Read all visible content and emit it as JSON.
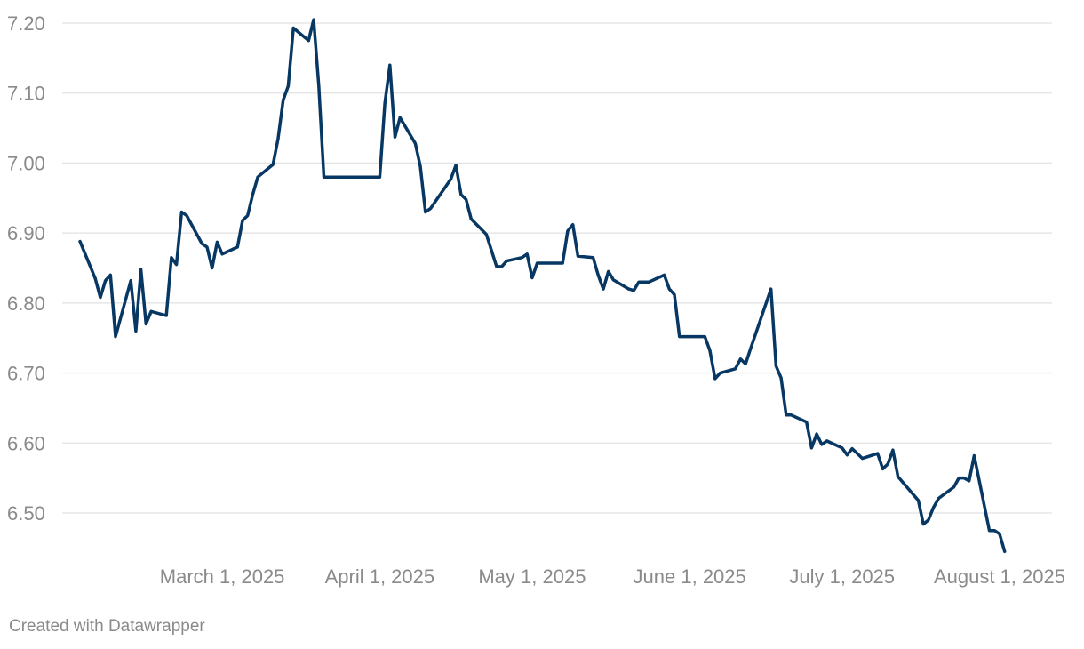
{
  "credit": "Created with Datawrapper",
  "colors": {
    "line": "#073763",
    "grid": "#e2e2e2",
    "tick": "#8a8a8a"
  },
  "chart_data": {
    "type": "line",
    "title": "",
    "xlabel": "",
    "ylabel": "",
    "grid": true,
    "xlim": [
      "2025-02-01",
      "2025-08-08"
    ],
    "ylim": [
      6.45,
      7.21
    ],
    "y_ticks": [
      7.2,
      7.1,
      7.0,
      6.9,
      6.8,
      6.7,
      6.6,
      6.5
    ],
    "y_tick_labels": [
      "7.20",
      "7.10",
      "7.00",
      "6.90",
      "6.80",
      "6.70",
      "6.60",
      "6.50"
    ],
    "x_ticks": [
      "2025-03-01",
      "2025-04-01",
      "2025-05-01",
      "2025-06-01",
      "2025-07-01",
      "2025-08-01"
    ],
    "x_tick_labels": [
      "March 1, 2025",
      "April 1, 2025",
      "May 1, 2025",
      "June 1, 2025",
      "July 1, 2025",
      "August 1, 2025"
    ],
    "series": [
      {
        "points": [
          [
            "2025-02-01",
            6.888
          ],
          [
            "2025-02-04",
            6.835
          ],
          [
            "2025-02-05",
            6.808
          ],
          [
            "2025-02-06",
            6.832
          ],
          [
            "2025-02-07",
            6.84
          ],
          [
            "2025-02-08",
            6.752
          ],
          [
            "2025-02-11",
            6.832
          ],
          [
            "2025-02-12",
            6.76
          ],
          [
            "2025-02-13",
            6.848
          ],
          [
            "2025-02-14",
            6.77
          ],
          [
            "2025-02-15",
            6.788
          ],
          [
            "2025-02-18",
            6.782
          ],
          [
            "2025-02-19",
            6.865
          ],
          [
            "2025-02-20",
            6.855
          ],
          [
            "2025-02-21",
            6.93
          ],
          [
            "2025-02-22",
            6.925
          ],
          [
            "2025-02-25",
            6.885
          ],
          [
            "2025-02-26",
            6.88
          ],
          [
            "2025-02-27",
            6.85
          ],
          [
            "2025-02-28",
            6.887
          ],
          [
            "2025-03-01",
            6.87
          ],
          [
            "2025-03-04",
            6.88
          ],
          [
            "2025-03-05",
            6.918
          ],
          [
            "2025-03-06",
            6.925
          ],
          [
            "2025-03-07",
            6.955
          ],
          [
            "2025-03-08",
            6.98
          ],
          [
            "2025-03-11",
            6.998
          ],
          [
            "2025-03-12",
            7.035
          ],
          [
            "2025-03-13",
            7.09
          ],
          [
            "2025-03-14",
            7.11
          ],
          [
            "2025-03-15",
            7.193
          ],
          [
            "2025-03-18",
            7.175
          ],
          [
            "2025-03-19",
            7.205
          ],
          [
            "2025-03-20",
            7.11
          ],
          [
            "2025-03-21",
            6.98
          ],
          [
            "2025-04-01",
            6.98
          ],
          [
            "2025-04-02",
            7.085
          ],
          [
            "2025-04-03",
            7.14
          ],
          [
            "2025-04-04",
            7.037
          ],
          [
            "2025-04-05",
            7.065
          ],
          [
            "2025-04-08",
            7.028
          ],
          [
            "2025-04-09",
            6.995
          ],
          [
            "2025-04-10",
            6.93
          ],
          [
            "2025-04-11",
            6.935
          ],
          [
            "2025-04-15",
            6.977
          ],
          [
            "2025-04-16",
            6.997
          ],
          [
            "2025-04-17",
            6.955
          ],
          [
            "2025-04-18",
            6.948
          ],
          [
            "2025-04-19",
            6.92
          ],
          [
            "2025-04-22",
            6.898
          ],
          [
            "2025-04-24",
            6.852
          ],
          [
            "2025-04-25",
            6.852
          ],
          [
            "2025-04-26",
            6.86
          ],
          [
            "2025-04-29",
            6.865
          ],
          [
            "2025-04-30",
            6.87
          ],
          [
            "2025-05-01",
            6.836
          ],
          [
            "2025-05-02",
            6.857
          ],
          [
            "2025-05-07",
            6.857
          ],
          [
            "2025-05-08",
            6.903
          ],
          [
            "2025-05-09",
            6.912
          ],
          [
            "2025-05-10",
            6.867
          ],
          [
            "2025-05-13",
            6.865
          ],
          [
            "2025-05-14",
            6.84
          ],
          [
            "2025-05-15",
            6.82
          ],
          [
            "2025-05-16",
            6.845
          ],
          [
            "2025-05-17",
            6.833
          ],
          [
            "2025-05-20",
            6.82
          ],
          [
            "2025-05-21",
            6.818
          ],
          [
            "2025-05-22",
            6.83
          ],
          [
            "2025-05-24",
            6.83
          ],
          [
            "2025-05-27",
            6.84
          ],
          [
            "2025-05-28",
            6.82
          ],
          [
            "2025-05-29",
            6.812
          ],
          [
            "2025-05-30",
            6.752
          ],
          [
            "2025-06-04",
            6.752
          ],
          [
            "2025-06-05",
            6.732
          ],
          [
            "2025-06-06",
            6.692
          ],
          [
            "2025-06-07",
            6.7
          ],
          [
            "2025-06-10",
            6.706
          ],
          [
            "2025-06-11",
            6.72
          ],
          [
            "2025-06-12",
            6.713
          ],
          [
            "2025-06-13",
            6.735
          ],
          [
            "2025-06-17",
            6.82
          ],
          [
            "2025-06-18",
            6.71
          ],
          [
            "2025-06-19",
            6.693
          ],
          [
            "2025-06-20",
            6.64
          ],
          [
            "2025-06-21",
            6.64
          ],
          [
            "2025-06-24",
            6.63
          ],
          [
            "2025-06-25",
            6.593
          ],
          [
            "2025-06-26",
            6.613
          ],
          [
            "2025-06-27",
            6.598
          ],
          [
            "2025-06-28",
            6.603
          ],
          [
            "2025-07-01",
            6.593
          ],
          [
            "2025-07-02",
            6.583
          ],
          [
            "2025-07-03",
            6.592
          ],
          [
            "2025-07-05",
            6.578
          ],
          [
            "2025-07-08",
            6.585
          ],
          [
            "2025-07-09",
            6.563
          ],
          [
            "2025-07-10",
            6.57
          ],
          [
            "2025-07-11",
            6.59
          ],
          [
            "2025-07-12",
            6.552
          ],
          [
            "2025-07-16",
            6.518
          ],
          [
            "2025-07-17",
            6.484
          ],
          [
            "2025-07-18",
            6.49
          ],
          [
            "2025-07-19",
            6.508
          ],
          [
            "2025-07-20",
            6.521
          ],
          [
            "2025-07-23",
            6.537
          ],
          [
            "2025-07-24",
            6.55
          ],
          [
            "2025-07-25",
            6.55
          ],
          [
            "2025-07-26",
            6.546
          ],
          [
            "2025-07-27",
            6.582
          ],
          [
            "2025-07-30",
            6.475
          ],
          [
            "2025-07-31",
            6.475
          ],
          [
            "2025-08-01",
            6.47
          ],
          [
            "2025-08-02",
            6.445
          ]
        ]
      }
    ]
  }
}
